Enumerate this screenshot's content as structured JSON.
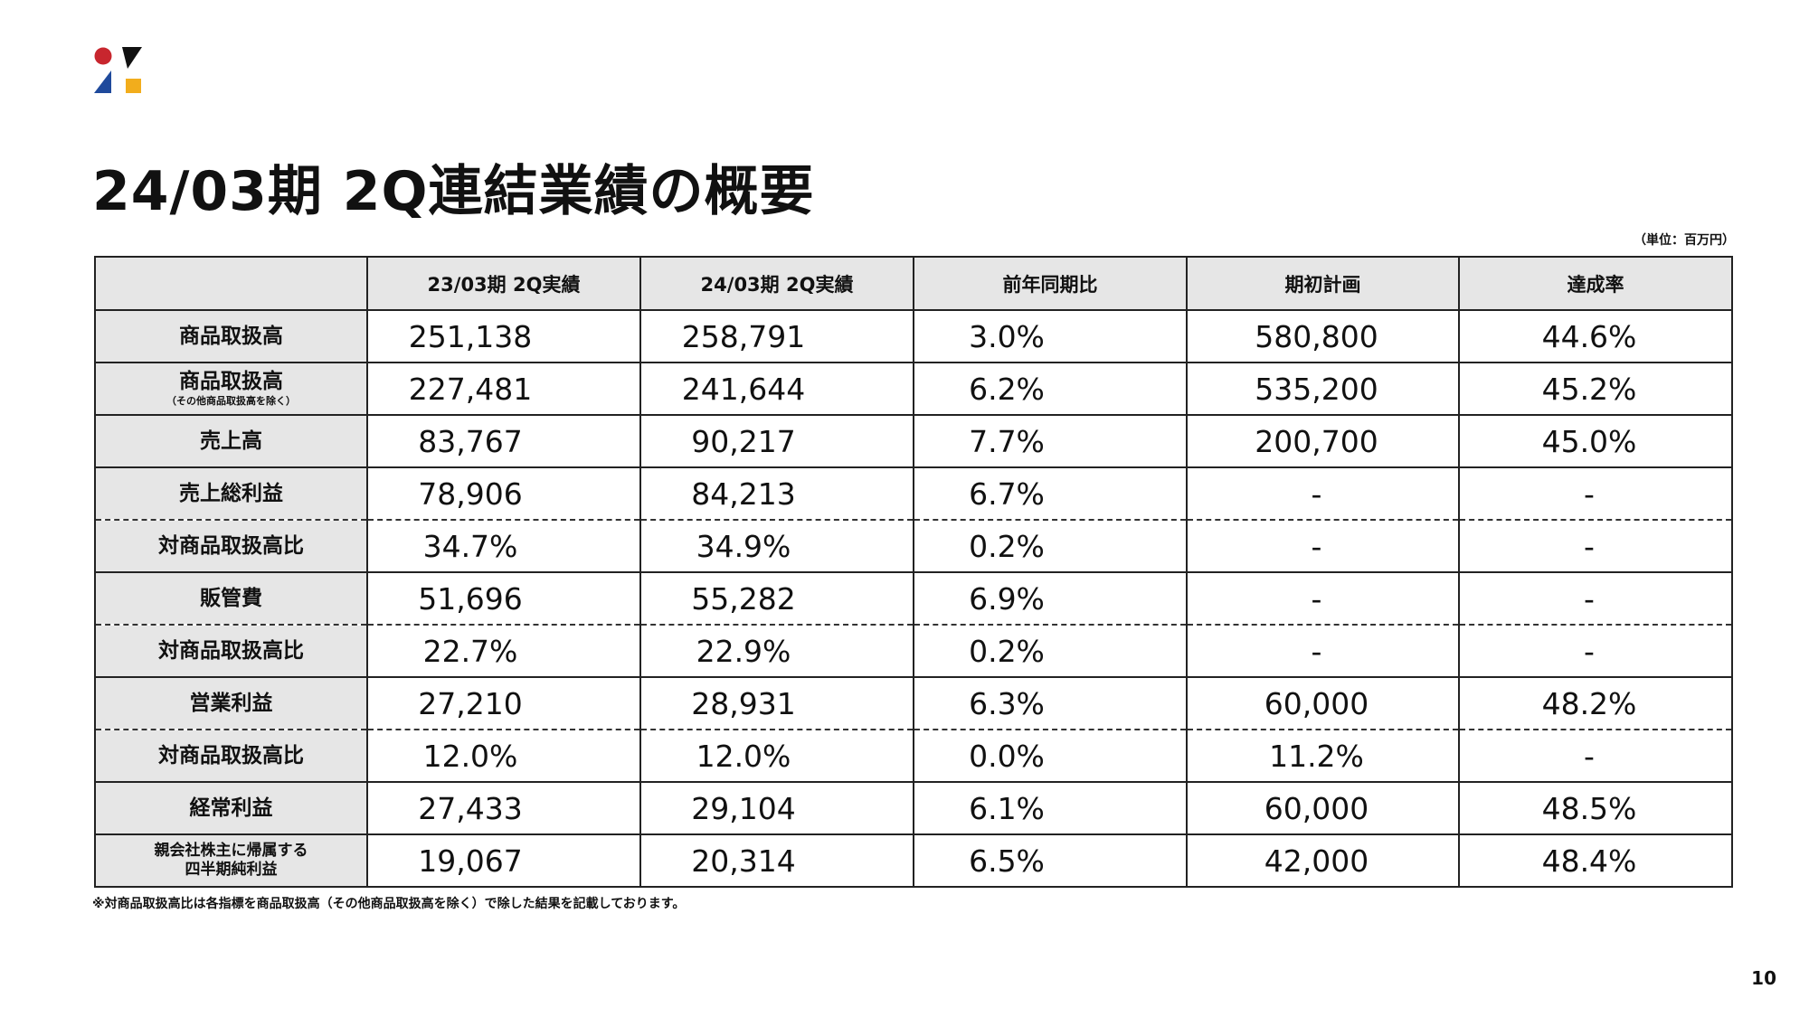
{
  "title": "24/03期 2Q連結業績の概要",
  "unit_note": "（単位：百万円）",
  "table": {
    "headers": [
      "",
      "23/03期 2Q実績",
      "24/03期 2Q実績",
      "前年同期比",
      "期初計画",
      "達成率"
    ],
    "rows": [
      {
        "label": "商品取扱高",
        "sub": "",
        "values": [
          "251,138",
          "258,791",
          "3.0%",
          "580,800",
          "44.6%"
        ]
      },
      {
        "label": "商品取扱高",
        "sub": "（その他商品取扱高を除く）",
        "values": [
          "227,481",
          "241,644",
          "6.2%",
          "535,200",
          "45.2%"
        ]
      },
      {
        "label": "売上高",
        "sub": "",
        "values": [
          "83,767",
          "90,217",
          "7.7%",
          "200,700",
          "45.0%"
        ]
      },
      {
        "label": "売上総利益",
        "sub": "",
        "values": [
          "78,906",
          "84,213",
          "6.7%",
          "-",
          "-"
        ]
      },
      {
        "label": "対商品取扱高比",
        "sub": "",
        "values": [
          "34.7%",
          "34.9%",
          "0.2%",
          "-",
          "-"
        ]
      },
      {
        "label": "販管費",
        "sub": "",
        "values": [
          "51,696",
          "55,282",
          "6.9%",
          "-",
          "-"
        ]
      },
      {
        "label": "対商品取扱高比",
        "sub": "",
        "values": [
          "22.7%",
          "22.9%",
          "0.2%",
          "-",
          "-"
        ]
      },
      {
        "label": "営業利益",
        "sub": "",
        "values": [
          "27,210",
          "28,931",
          "6.3%",
          "60,000",
          "48.2%"
        ]
      },
      {
        "label": "対商品取扱高比",
        "sub": "",
        "values": [
          "12.0%",
          "12.0%",
          "0.0%",
          "11.2%",
          "-"
        ]
      },
      {
        "label": "経常利益",
        "sub": "",
        "values": [
          "27,433",
          "29,104",
          "6.1%",
          "60,000",
          "48.5%"
        ]
      },
      {
        "label_line1": "親会社株主に帰属する",
        "label_line2": "四半期純利益",
        "values": [
          "19,067",
          "20,314",
          "6.5%",
          "42,000",
          "48.4%"
        ]
      }
    ]
  },
  "footnote": "※対商品取扱高比は各指標を商品取扱高（その他商品取扱高を除く）で除した結果を記載しております。",
  "page_number": "10",
  "colors": {
    "logo_red": "#c8262e",
    "logo_black": "#111111",
    "logo_blue": "#1f4a9c",
    "logo_yellow": "#f2ad1c",
    "header_bg": "#e6e6e6"
  }
}
